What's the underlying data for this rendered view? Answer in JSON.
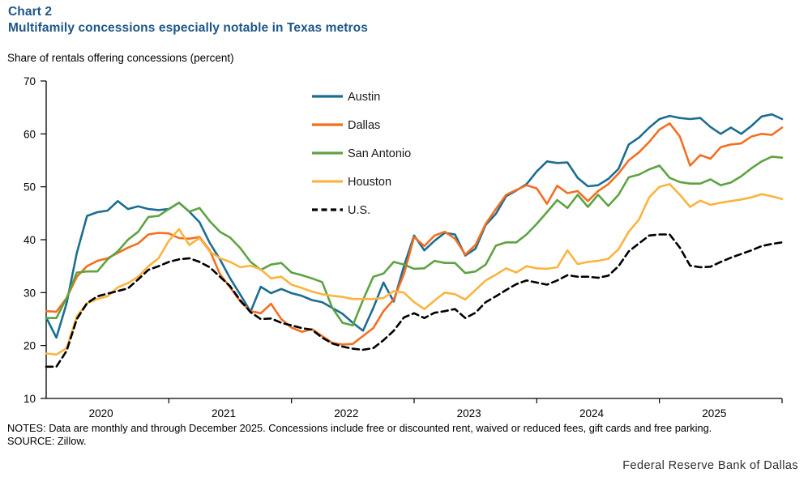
{
  "header": {
    "kicker": "Chart 2",
    "title": "Multifamily concessions especially notable in Texas metros"
  },
  "y_axis_title": "Share of rentals offering concessions (percent)",
  "chart_data": {
    "type": "line",
    "title": "Multifamily concessions especially notable in Texas metros",
    "ylabel": "Share of rentals offering concessions (percent)",
    "ylim": [
      10,
      70
    ],
    "yticks": [
      10,
      20,
      30,
      40,
      50,
      60,
      70
    ],
    "grid": false,
    "legend_position": "upper-center-inside",
    "x_frequency": "monthly",
    "x_start": "2019-12",
    "x_end": "2025-12",
    "year_labels": [
      "2020",
      "2021",
      "2022",
      "2023",
      "2024",
      "2025"
    ],
    "series": [
      {
        "name": "Austin",
        "color": "#1d6d91",
        "style": "solid",
        "values": [
          25.3,
          21.5,
          28.0,
          37.5,
          44.5,
          45.2,
          45.5,
          47.3,
          45.8,
          46.3,
          45.8,
          45.6,
          45.8,
          47.0,
          45.3,
          43.3,
          39.4,
          36.3,
          32.7,
          29.6,
          26.4,
          31.1,
          29.9,
          30.7,
          29.9,
          29.4,
          28.6,
          28.2,
          27.1,
          26.0,
          24.3,
          22.8,
          27.1,
          31.9,
          28.3,
          35.0,
          40.8,
          38.0,
          39.8,
          41.3,
          41.0,
          37.0,
          38.3,
          42.8,
          44.9,
          48.2,
          49.3,
          50.5,
          52.9,
          54.8,
          54.5,
          54.6,
          51.7,
          50.1,
          50.3,
          51.5,
          53.4,
          58.0,
          59.3,
          61.2,
          62.8,
          63.4,
          63.0,
          62.8,
          63.0,
          61.3,
          60.0,
          61.2,
          60.0,
          61.5,
          63.3,
          63.7,
          62.8
        ]
      },
      {
        "name": "Dallas",
        "color": "#f36f21",
        "style": "solid",
        "values": [
          26.5,
          26.4,
          29.0,
          33.0,
          35.0,
          36.0,
          36.5,
          37.5,
          38.5,
          39.3,
          41.0,
          41.3,
          41.2,
          40.3,
          40.2,
          40.5,
          38.0,
          33.5,
          31.0,
          28.3,
          26.5,
          26.1,
          27.9,
          25.0,
          23.4,
          22.6,
          23.1,
          21.8,
          20.5,
          20.2,
          20.3,
          21.8,
          23.3,
          26.5,
          28.7,
          33.5,
          40.5,
          38.8,
          40.8,
          41.5,
          40.2,
          37.2,
          39.0,
          43.0,
          45.8,
          48.5,
          49.4,
          50.3,
          49.7,
          46.8,
          50.2,
          48.8,
          49.2,
          47.3,
          49.2,
          50.5,
          52.5,
          55.0,
          56.5,
          58.5,
          60.8,
          62.0,
          59.5,
          54.0,
          56.0,
          55.3,
          57.5,
          58.0,
          58.2,
          59.5,
          60.0,
          59.8,
          61.2
        ]
      },
      {
        "name": "San Antonio",
        "color": "#5ea342",
        "style": "solid",
        "values": [
          25.2,
          25.2,
          29.0,
          33.8,
          34.0,
          34.0,
          36.3,
          37.8,
          40.0,
          41.5,
          44.3,
          44.5,
          45.8,
          47.0,
          45.3,
          46.0,
          43.5,
          41.5,
          40.4,
          38.4,
          35.8,
          34.3,
          35.3,
          35.6,
          33.8,
          33.3,
          32.7,
          32.0,
          27.1,
          24.3,
          23.8,
          28.6,
          33.0,
          33.6,
          35.8,
          35.3,
          34.5,
          34.6,
          36.0,
          35.6,
          35.6,
          33.7,
          34.0,
          35.3,
          38.9,
          39.5,
          39.5,
          41.0,
          43.0,
          45.2,
          47.5,
          46.0,
          48.5,
          46.2,
          48.5,
          46.4,
          48.5,
          51.8,
          52.3,
          53.3,
          54.0,
          51.7,
          50.9,
          50.6,
          50.6,
          51.4,
          50.3,
          50.8,
          52.0,
          53.5,
          54.8,
          55.7,
          55.5
        ]
      },
      {
        "name": "Houston",
        "color": "#fcb340",
        "style": "solid",
        "values": [
          18.5,
          18.3,
          19.5,
          25.5,
          28.0,
          28.8,
          29.3,
          31.0,
          31.8,
          33.0,
          35.0,
          36.5,
          39.8,
          42.0,
          39.0,
          40.3,
          37.8,
          36.5,
          35.8,
          34.8,
          35.1,
          34.4,
          32.7,
          33.0,
          31.5,
          30.9,
          30.2,
          29.7,
          29.4,
          29.2,
          28.8,
          28.8,
          28.8,
          29.0,
          30.3,
          30.0,
          28.2,
          26.9,
          28.5,
          30.0,
          29.7,
          28.7,
          30.5,
          32.3,
          33.4,
          34.6,
          33.8,
          35.0,
          34.6,
          34.5,
          34.8,
          38.0,
          35.4,
          35.8,
          36.0,
          36.4,
          38.2,
          41.5,
          43.8,
          48.0,
          50.0,
          50.5,
          48.5,
          46.2,
          47.4,
          46.6,
          47.0,
          47.3,
          47.6,
          48.0,
          48.6,
          48.2,
          47.7
        ]
      },
      {
        "name": "U.S.",
        "color": "#000000",
        "style": "dashed",
        "values": [
          16.0,
          16.0,
          19.0,
          25.0,
          28.0,
          29.3,
          29.8,
          30.3,
          30.8,
          32.5,
          34.3,
          35.0,
          35.8,
          36.3,
          36.5,
          35.8,
          34.8,
          33.0,
          31.2,
          28.5,
          26.3,
          25.0,
          25.1,
          24.3,
          23.8,
          23.3,
          23.0,
          21.5,
          20.4,
          19.8,
          19.4,
          19.2,
          19.5,
          21.0,
          22.8,
          25.3,
          26.1,
          25.2,
          26.2,
          26.5,
          26.9,
          25.2,
          26.2,
          28.2,
          29.3,
          30.5,
          31.6,
          32.3,
          31.9,
          31.5,
          32.3,
          33.3,
          33.0,
          33.0,
          32.8,
          33.2,
          35.0,
          37.8,
          39.3,
          40.8,
          41.0,
          41.0,
          38.5,
          35.1,
          34.8,
          34.9,
          35.8,
          36.6,
          37.3,
          38.0,
          38.8,
          39.2,
          39.5
        ]
      }
    ]
  },
  "notes": {
    "line1": "NOTES: Data are monthly and through December 2025. Concessions include free or discounted rent, waived or reduced fees, gift cards and free parking.",
    "source": "SOURCE: Zillow."
  },
  "footer": {
    "branding": "Federal Reserve Bank of Dallas"
  },
  "colors": {
    "heading": "#1f5688",
    "axis": "#000000"
  }
}
